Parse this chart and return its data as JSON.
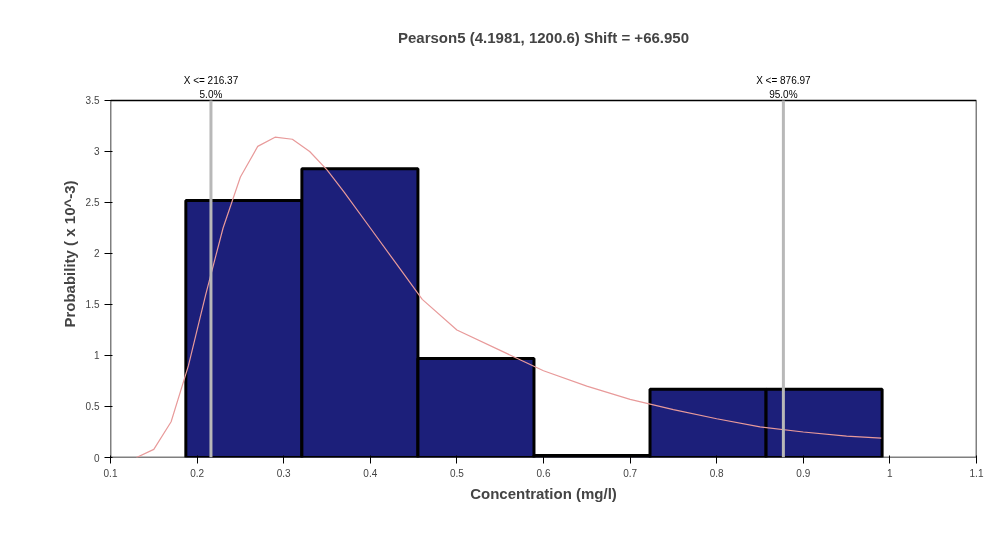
{
  "chart_data": {
    "type": "histogram",
    "title": "Pearson5 (4.1981, 1200.6) Shift = +66.950",
    "xlabel": "Concentration (mg/l)",
    "ylabel": "Probability ( x 10^-3)",
    "xlim": [
      0.1,
      1.1
    ],
    "xticks": [
      0.1,
      0.2,
      0.3,
      0.4,
      0.5,
      0.6,
      0.7,
      0.8,
      0.9,
      1,
      1.1
    ],
    "ylim": [
      0,
      3.5
    ],
    "yticks": [
      0,
      0.5,
      1,
      1.5,
      2,
      2.5,
      3,
      3.5
    ],
    "grid": false,
    "series": [
      {
        "color": "#1c1f7a",
        "bins": [
          0.187,
          0.321,
          0.455,
          0.589,
          0.723,
          0.857,
          0.991
        ],
        "values": [
          2.52,
          2.83,
          0.97,
          0.02,
          0.67,
          0.67
        ]
      },
      {
        "type": "line",
        "color": "#e89a9a",
        "x": [
          0.13,
          0.15,
          0.17,
          0.19,
          0.21,
          0.23,
          0.25,
          0.27,
          0.29,
          0.31,
          0.33,
          0.35,
          0.37,
          0.4,
          0.43,
          0.46,
          0.5,
          0.55,
          0.6,
          0.65,
          0.7,
          0.75,
          0.8,
          0.85,
          0.9,
          0.95,
          0.99
        ],
        "values": [
          0,
          0.08,
          0.35,
          0.9,
          1.6,
          2.25,
          2.75,
          3.05,
          3.14,
          3.12,
          3.0,
          2.82,
          2.6,
          2.25,
          1.9,
          1.55,
          1.25,
          1.05,
          0.85,
          0.7,
          0.57,
          0.47,
          0.38,
          0.3,
          0.25,
          0.21,
          0.19
        ]
      }
    ],
    "ref_lines": [
      {
        "axis": "x",
        "value": 0.216,
        "color": "#b8b8b8"
      },
      {
        "axis": "x",
        "value": 0.877,
        "color": "#b8b8b8"
      }
    ],
    "annotations": [
      "X <= 216.37",
      "5.0%",
      "X <= 876.97",
      "95.0%"
    ]
  }
}
